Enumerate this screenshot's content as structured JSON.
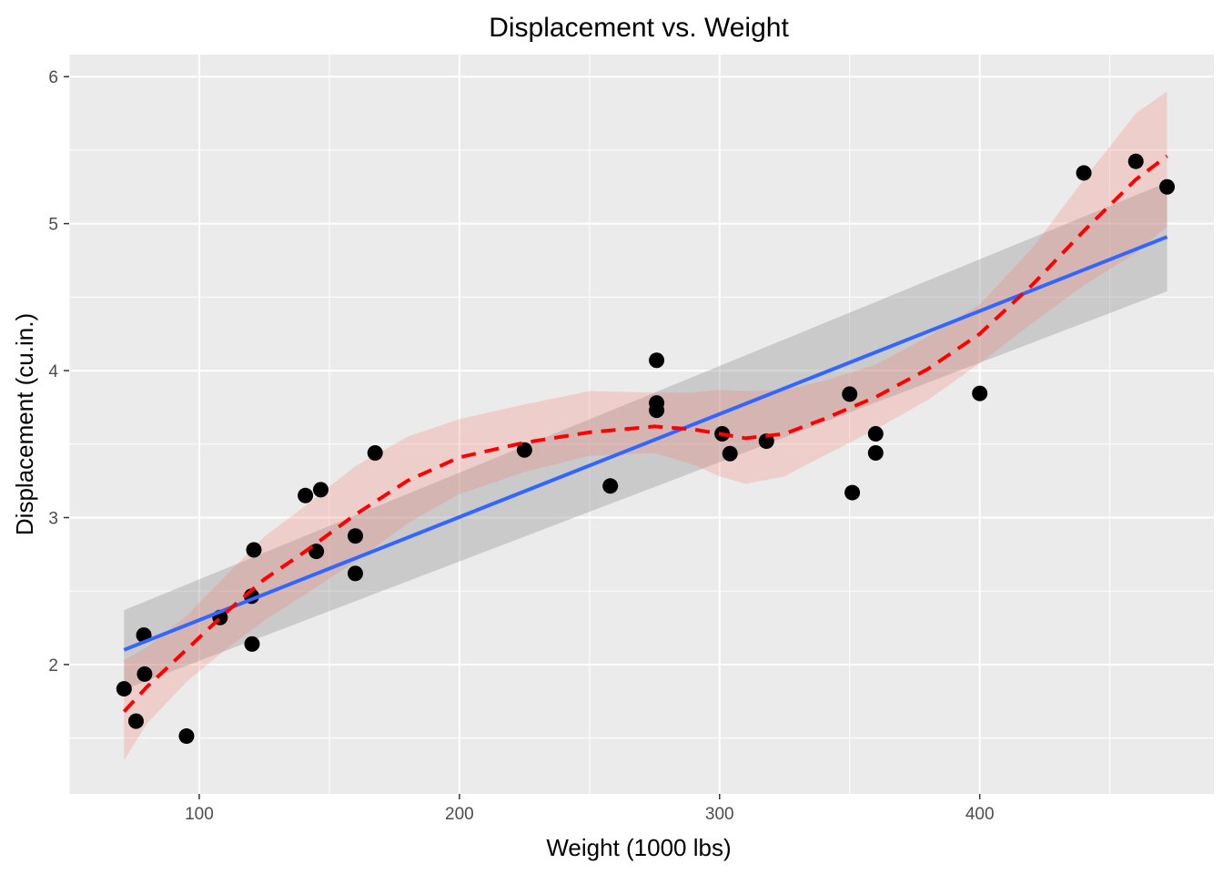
{
  "chart_data": {
    "type": "scatter",
    "title": "Displacement vs. Weight",
    "xlabel": "Weight (1000 lbs)",
    "ylabel": "Displacement (cu.in.)",
    "xlim": [
      50,
      490
    ],
    "ylim": [
      1.12,
      6.15
    ],
    "x_ticks": [
      100,
      200,
      300,
      400
    ],
    "x_tick_labels": [
      "100",
      "200",
      "300",
      "400"
    ],
    "y_ticks": [
      2,
      3,
      4,
      5,
      6
    ],
    "y_tick_labels": [
      "2",
      "3",
      "4",
      "5",
      "6"
    ],
    "grid": true,
    "legend": "none",
    "points": [
      [
        71.1,
        1.835
      ],
      [
        75.7,
        1.615
      ],
      [
        78.7,
        2.2
      ],
      [
        79.0,
        1.935
      ],
      [
        95.1,
        1.513
      ],
      [
        108.0,
        2.32
      ],
      [
        120.1,
        2.465
      ],
      [
        120.3,
        2.14
      ],
      [
        121.0,
        2.78
      ],
      [
        140.8,
        3.15
      ],
      [
        145.0,
        2.77
      ],
      [
        146.7,
        3.19
      ],
      [
        160.0,
        2.62
      ],
      [
        160.0,
        2.875
      ],
      [
        167.6,
        3.44
      ],
      [
        225.0,
        3.46
      ],
      [
        258.0,
        3.215
      ],
      [
        275.8,
        4.07
      ],
      [
        275.8,
        3.73
      ],
      [
        275.8,
        3.78
      ],
      [
        301.0,
        3.57
      ],
      [
        304.0,
        3.435
      ],
      [
        318.0,
        3.52
      ],
      [
        350.0,
        3.84
      ],
      [
        351.0,
        3.17
      ],
      [
        360.0,
        3.44
      ],
      [
        360.0,
        3.57
      ],
      [
        400.0,
        3.845
      ],
      [
        440.0,
        5.345
      ],
      [
        460.0,
        5.424
      ],
      [
        472.0,
        5.25
      ]
    ],
    "series": [
      {
        "method": "linear fit",
        "line_color": "#3366ff",
        "band_color": "#999999",
        "x": [
          71.1,
          472.0
        ],
        "y": [
          2.1,
          4.91
        ],
        "lower": [
          1.83,
          4.54
        ],
        "upper": [
          2.37,
          5.28
        ]
      },
      {
        "method": "smooth (dashed)",
        "line_color": "#ff0000",
        "band_color": "#f8766d",
        "x": [
          71.1,
          80,
          95,
          110,
          125,
          140,
          160,
          180,
          200,
          225,
          250,
          275,
          290,
          300,
          310,
          325,
          340,
          360,
          380,
          400,
          420,
          440,
          460,
          472
        ],
        "y": [
          1.68,
          1.85,
          2.1,
          2.35,
          2.58,
          2.76,
          3.02,
          3.25,
          3.41,
          3.51,
          3.58,
          3.62,
          3.6,
          3.57,
          3.54,
          3.57,
          3.67,
          3.82,
          4.01,
          4.25,
          4.58,
          4.95,
          5.3,
          5.46
        ],
        "lower": [
          1.35,
          1.6,
          1.88,
          2.1,
          2.3,
          2.47,
          2.7,
          2.96,
          3.16,
          3.31,
          3.42,
          3.44,
          3.36,
          3.28,
          3.23,
          3.28,
          3.42,
          3.6,
          3.8,
          4.05,
          4.32,
          4.58,
          4.8,
          4.98
        ],
        "upper": [
          2.03,
          2.12,
          2.33,
          2.6,
          2.87,
          3.07,
          3.35,
          3.55,
          3.67,
          3.77,
          3.86,
          3.85,
          3.85,
          3.87,
          3.86,
          3.87,
          3.93,
          4.04,
          4.23,
          4.45,
          4.83,
          5.3,
          5.75,
          5.9
        ]
      }
    ],
    "colors": {
      "panel_background": "#ebebeb",
      "grid": "#ffffff",
      "point": "#000000",
      "tick_label": "#4d4d4d"
    }
  }
}
